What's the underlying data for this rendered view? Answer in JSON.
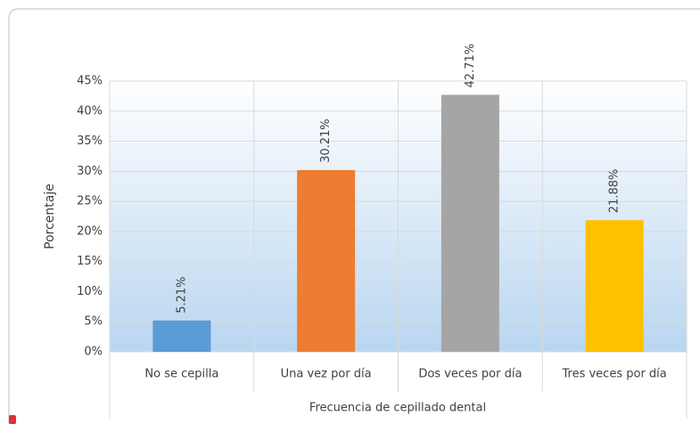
{
  "chart_data": {
    "type": "bar",
    "categories": [
      "No se cepilla",
      "Una vez por día",
      "Dos veces por día",
      "Tres veces por día"
    ],
    "values": [
      5.21,
      30.21,
      42.71,
      21.88
    ],
    "value_labels": [
      "5.21%",
      "30.21%",
      "42.71%",
      "21.88%"
    ],
    "colors": [
      "#5b9bd5",
      "#ed7d31",
      "#a5a5a5",
      "#ffc000"
    ],
    "x_label": "Frecuencia de cepillado dental",
    "y_label": "Porcentaje",
    "ylim": [
      0,
      45
    ],
    "yticks": [
      {
        "value": 0,
        "label": "0%"
      },
      {
        "value": 5,
        "label": "5%"
      },
      {
        "value": 10,
        "label": "10%"
      },
      {
        "value": 15,
        "label": "15%"
      },
      {
        "value": 20,
        "label": "20%"
      },
      {
        "value": 25,
        "label": "25%"
      },
      {
        "value": 30,
        "label": "30%"
      },
      {
        "value": 35,
        "label": "35%"
      },
      {
        "value": 40,
        "label": "40%"
      },
      {
        "value": 45,
        "label": "45%"
      }
    ],
    "grid": true
  }
}
